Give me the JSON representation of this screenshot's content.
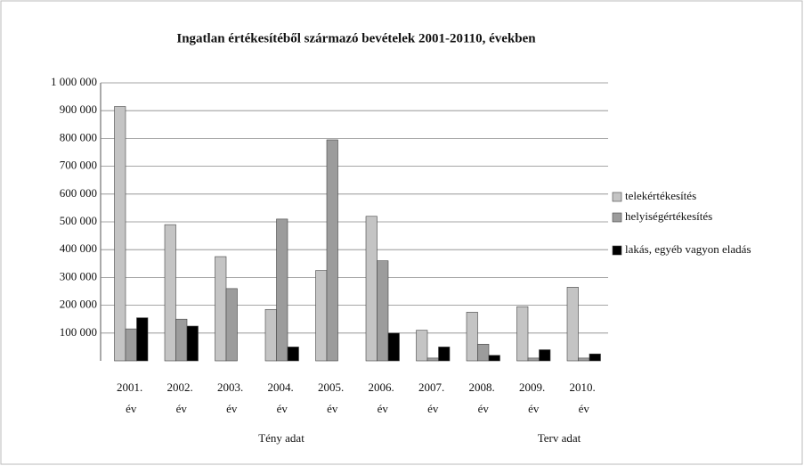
{
  "chart_data": {
    "type": "bar",
    "title": "Ingatlan értékesítéből származó bevételek 2001-20110, években",
    "categories": [
      "2001. év",
      "2002. év",
      "2003. év",
      "2004. év",
      "2005. év",
      "2006. év",
      "2007. év",
      "2008. év",
      "2009. év",
      "2010. év"
    ],
    "series": [
      {
        "name": "telekértékesítés",
        "color": "#c4c4c4",
        "values": [
          915000,
          490000,
          375000,
          185000,
          325000,
          520000,
          110000,
          175000,
          195000,
          265000
        ]
      },
      {
        "name": "helyiségértékesítés",
        "color": "#9c9c9c",
        "values": [
          115000,
          150000,
          260000,
          510000,
          795000,
          360000,
          10000,
          60000,
          10000,
          10000
        ]
      },
      {
        "name": "lakás, egyéb vagyon eladás",
        "color": "#000000",
        "values": [
          155000,
          125000,
          0,
          50000,
          0,
          100000,
          50000,
          20000,
          40000,
          25000
        ]
      }
    ],
    "annotations": [
      "Tény adat",
      "Terv adat"
    ],
    "ylim": [
      0,
      1000000
    ],
    "yticks": [
      {
        "value": 100000,
        "label": "100 000"
      },
      {
        "value": 200000,
        "label": "200 000"
      },
      {
        "value": 300000,
        "label": "300 000"
      },
      {
        "value": 400000,
        "label": "400 000"
      },
      {
        "value": 500000,
        "label": "500 000"
      },
      {
        "value": 600000,
        "label": "600 000"
      },
      {
        "value": 700000,
        "label": "700 000"
      },
      {
        "value": 800000,
        "label": "800 000"
      },
      {
        "value": 900000,
        "label": "900 000"
      },
      {
        "value": 1000000,
        "label": "1 000 000"
      }
    ],
    "grid": true,
    "legend": "right"
  }
}
